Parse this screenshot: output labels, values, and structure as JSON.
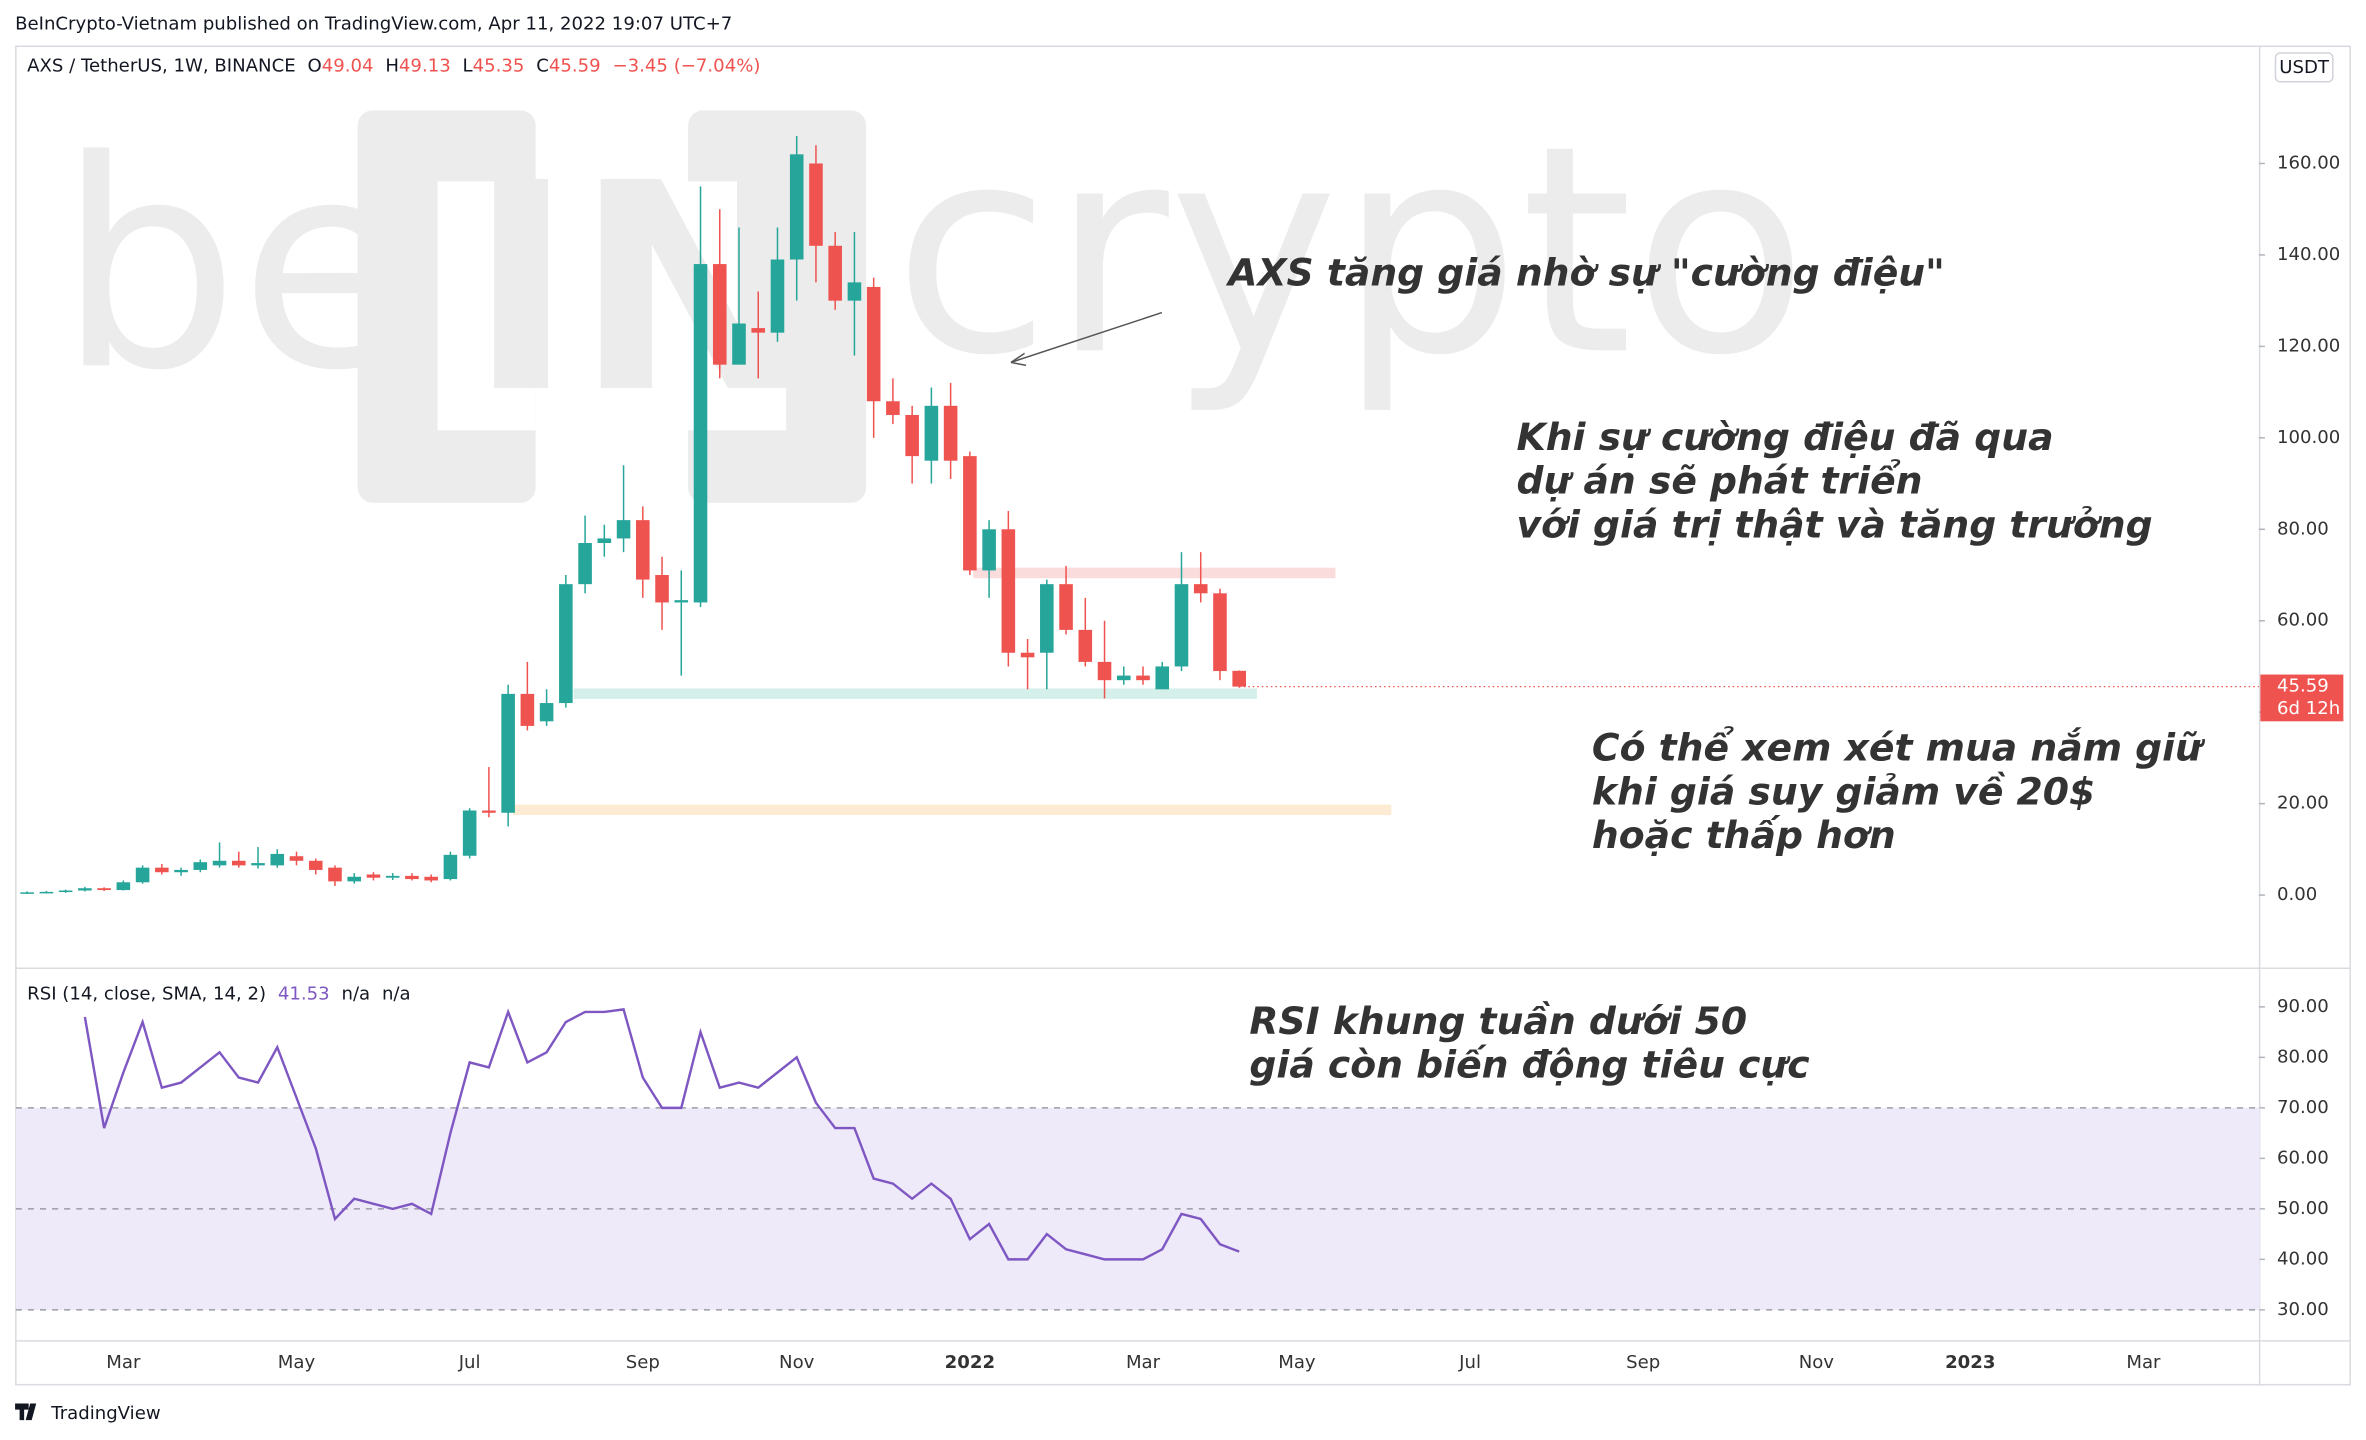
{
  "header": "BeInCrypto-Vietnam published on TradingView.com, Apr 11, 2022 19:07 UTC+7",
  "footer": "TradingView",
  "watermark": {
    "left": "be",
    "mid": "IN",
    "right": "crypto"
  },
  "chart_data": {
    "type": "candlestick",
    "symbol": "AXS / TetherUS, 1W, BINANCE",
    "legend": {
      "o": "O",
      "h": "H",
      "l": "L",
      "c": "C",
      "change": "−3.45 (−7.04%)"
    },
    "currency": "USDT",
    "countdown": "6d 12h",
    "up_color": "#26a69a",
    "down_color": "#ef5350",
    "categories": [
      null,
      null,
      null,
      null,
      null,
      "Mar",
      null,
      null,
      null,
      null,
      null,
      null,
      null,
      null,
      "May",
      null,
      null,
      null,
      null,
      null,
      null,
      null,
      null,
      "Jul",
      null,
      null,
      null,
      null,
      null,
      null,
      null,
      null,
      "Sep",
      null,
      null,
      null,
      null,
      null,
      null,
      null,
      "Nov",
      null,
      null,
      null,
      null,
      null,
      null,
      null,
      null,
      "2022",
      null,
      null,
      null,
      null,
      null,
      null,
      null,
      null,
      "Mar",
      null,
      null,
      null,
      null,
      null,
      null,
      null,
      "May",
      null,
      null,
      null,
      null,
      null,
      null,
      null,
      null,
      "Jul",
      null,
      null,
      null,
      null,
      null,
      null,
      null,
      null,
      "Sep",
      null,
      null,
      null,
      null,
      null,
      null,
      null,
      null,
      "Nov",
      null,
      null,
      null,
      null,
      null,
      null,
      null,
      "2023",
      null,
      null,
      null,
      null,
      null,
      null,
      null,
      null,
      "Mar",
      null,
      null,
      null,
      null,
      null
    ],
    "open": [
      0.5,
      0.6,
      0.7,
      1.0,
      1.5,
      1.1,
      2.8,
      6.0,
      5.0,
      5.5,
      6.5,
      7.5,
      6.5,
      6.5,
      8.5,
      7.5,
      6.0,
      3.0,
      4.5,
      3.8,
      4.2,
      4.0,
      3.5,
      8.6,
      18.5,
      18.0,
      44,
      38,
      42,
      68,
      77,
      78,
      82,
      70,
      64,
      64,
      138,
      116,
      124,
      123,
      139,
      160,
      142,
      130,
      133,
      108,
      105,
      95,
      107,
      96,
      71,
      80,
      53,
      53,
      68,
      58,
      51,
      47,
      48,
      45,
      50,
      68,
      66,
      49.04,
      null,
      null,
      null,
      null,
      null,
      null,
      null,
      null,
      null,
      null,
      null,
      null,
      null,
      null,
      null,
      null,
      null,
      null,
      null,
      null,
      null,
      null,
      null,
      null,
      null,
      null,
      null,
      null,
      null,
      null,
      null,
      null,
      null,
      null,
      null,
      null,
      null,
      null,
      null,
      null,
      null,
      null,
      null,
      null,
      null,
      null,
      null,
      null,
      null,
      null,
      null,
      null
    ],
    "high": [
      0.8,
      0.9,
      1.2,
      1.8,
      1.7,
      3.2,
      6.5,
      6.8,
      6.0,
      7.8,
      11.5,
      9.5,
      10.5,
      10.0,
      9.5,
      8.0,
      6.5,
      4.8,
      5.0,
      4.8,
      4.8,
      4.5,
      9.5,
      19,
      28,
      46,
      51,
      45,
      70,
      83,
      81,
      94,
      85,
      74,
      71,
      155,
      150,
      146,
      132,
      146,
      166,
      164,
      145,
      145,
      135,
      113,
      107,
      111,
      112,
      97,
      82,
      84,
      56,
      69,
      72,
      65,
      60,
      50,
      50,
      51,
      75,
      75,
      67,
      49.13,
      null,
      null,
      null,
      null,
      null,
      null,
      null,
      null,
      null,
      null,
      null,
      null,
      null,
      null,
      null,
      null,
      null,
      null,
      null,
      null,
      null,
      null,
      null,
      null,
      null,
      null,
      null,
      null,
      null,
      null,
      null,
      null,
      null,
      null,
      null,
      null,
      null,
      null,
      null,
      null,
      null,
      null,
      null,
      null,
      null,
      null,
      null,
      null,
      null,
      null,
      null,
      null
    ],
    "low": [
      0.3,
      0.4,
      0.5,
      0.8,
      0.9,
      1.0,
      2.5,
      4.5,
      4.2,
      5.0,
      6.0,
      6.0,
      5.8,
      6.0,
      6.5,
      4.5,
      2.0,
      2.5,
      3.2,
      3.3,
      3.2,
      2.8,
      3.2,
      8.0,
      17,
      15,
      36,
      37,
      41,
      66,
      74,
      75,
      65,
      58,
      48,
      63,
      113,
      116,
      113,
      121,
      130,
      134,
      128,
      118,
      100,
      103,
      90,
      90,
      91,
      70,
      65,
      50,
      45,
      45,
      57,
      50,
      43,
      46,
      46,
      45,
      49,
      64,
      47,
      45.35,
      null,
      null,
      null,
      null,
      null,
      null,
      null,
      null,
      null,
      null,
      null,
      null,
      null,
      null,
      null,
      null,
      null,
      null,
      null,
      null,
      null,
      null,
      null,
      null,
      null,
      null,
      null,
      null,
      null,
      null,
      null,
      null,
      null,
      null,
      null,
      null,
      null,
      null,
      null,
      null,
      null,
      null,
      null,
      null,
      null,
      null,
      null,
      null,
      null,
      null,
      null,
      null
    ],
    "close": [
      0.6,
      0.7,
      1.0,
      1.5,
      1.1,
      2.8,
      6.0,
      5.0,
      5.5,
      7.2,
      7.5,
      6.5,
      7.0,
      9.0,
      7.5,
      5.5,
      3.0,
      4.0,
      3.8,
      4.2,
      3.5,
      3.2,
      8.8,
      18.5,
      18.0,
      44,
      37,
      42,
      68,
      77,
      78,
      82,
      69,
      64,
      64.5,
      138,
      116,
      125,
      123,
      139,
      162,
      142,
      130,
      134,
      108,
      105,
      96,
      107,
      95,
      71,
      80,
      53,
      52,
      68,
      58,
      51,
      47,
      48,
      47,
      50,
      68,
      66,
      49,
      45.59,
      null,
      null,
      null,
      null,
      null,
      null,
      null,
      null,
      null,
      null,
      null,
      null,
      null,
      null,
      null,
      null,
      null,
      null,
      null,
      null,
      null,
      null,
      null,
      null,
      null,
      null,
      null,
      null,
      null,
      null,
      null,
      null,
      null,
      null,
      null,
      null,
      null,
      null,
      null,
      null,
      null,
      null,
      null,
      null,
      null,
      null,
      null,
      null,
      null,
      null,
      null,
      null
    ],
    "ylim": [
      -15.5,
      185.8
    ],
    "yticks": [
      {
        "value": 0,
        "label": "0.00"
      },
      {
        "value": 20,
        "label": "20.00"
      },
      {
        "value": 40,
        "label": "40.00"
      },
      {
        "value": 60,
        "label": "60.00"
      },
      {
        "value": 80,
        "label": "80.00"
      },
      {
        "value": 100,
        "label": "100.00"
      },
      {
        "value": 120,
        "label": "120.00"
      },
      {
        "value": 140,
        "label": "140.00"
      },
      {
        "value": 160,
        "label": "160.00"
      }
    ],
    "zones": [
      {
        "low": 69.3,
        "high": 71.6,
        "color": "#fbdcdc"
      },
      {
        "low": 42.9,
        "high": 45.2,
        "color": "#d5efea"
      },
      {
        "low": 17.5,
        "high": 19.8,
        "color": "#fdebd3"
      }
    ],
    "rsi": {
      "label": "RSI (14, close, SMA, 14, 2)",
      "na1": "n/a",
      "na2": "n/a",
      "color": "#7e57c2",
      "band": [
        30,
        70
      ],
      "band_color": "#efeafa",
      "levels": [
        70,
        50,
        30
      ],
      "values": [
        null,
        null,
        null,
        88,
        66,
        77,
        87,
        74,
        75,
        78,
        81,
        76,
        75,
        82,
        72,
        62,
        48,
        52,
        51,
        50,
        51,
        49,
        65,
        79,
        78,
        89,
        79,
        81,
        87,
        89,
        89,
        89.5,
        76,
        70,
        70,
        85,
        74,
        75,
        74,
        77,
        80,
        71,
        66,
        66,
        56,
        55,
        52,
        55,
        52,
        44,
        47,
        40,
        40,
        45,
        42,
        41,
        40,
        40,
        40,
        42,
        49,
        48,
        43,
        41.53,
        null,
        null,
        null,
        null,
        null,
        null,
        null,
        null,
        null,
        null,
        null,
        null,
        null,
        null,
        null,
        null,
        null,
        null,
        null,
        null,
        null,
        null,
        null,
        null,
        null,
        null,
        null,
        null,
        null,
        null,
        null,
        null,
        null,
        null,
        null,
        null,
        null,
        null,
        null,
        null,
        null,
        null,
        null,
        null,
        null,
        null,
        null,
        null,
        null,
        null,
        null,
        null
      ],
      "ylim": [
        24,
        97.5
      ],
      "yticks": [
        {
          "value": 30,
          "label": "30.00"
        },
        {
          "value": 40,
          "label": "40.00"
        },
        {
          "value": 50,
          "label": "50.00"
        },
        {
          "value": 60,
          "label": "60.00"
        },
        {
          "value": 70,
          "label": "70.00"
        },
        {
          "value": 80,
          "label": "80.00"
        },
        {
          "value": 90,
          "label": "90.00"
        }
      ]
    },
    "annotations": {
      "hype": "AXS tăng giá nhờ sự \"cường điệu\"",
      "after": [
        "Khi sự cường điệu đã qua",
        "dự án sẽ phát triển",
        "với giá trị thật và tăng trưởng"
      ],
      "buy": [
        "Có thể xem xét mua nắm giữ",
        "khi giá suy giảm về 20$",
        "hoặc thấp hơn"
      ],
      "rsi": [
        "RSI khung tuần dưới 50",
        "giá còn biến động tiêu cực"
      ]
    }
  }
}
